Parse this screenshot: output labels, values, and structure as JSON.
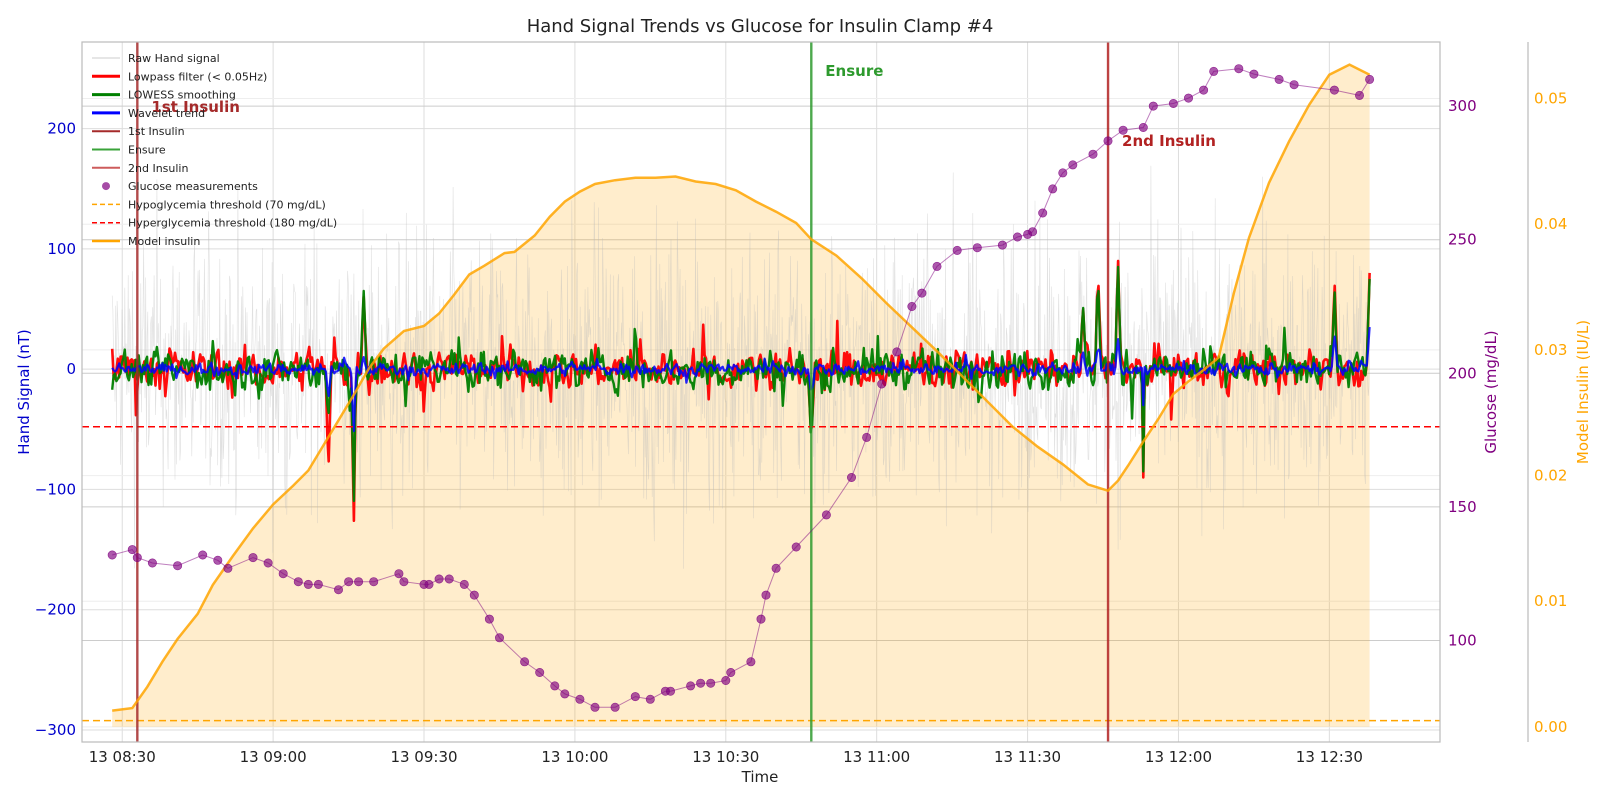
{
  "chart_data": {
    "type": "line",
    "title": "Hand Signal Trends vs Glucose for Insulin Clamp #4",
    "xlabel": "Time",
    "x_ticks": [
      "13 08:30",
      "13 09:00",
      "13 09:30",
      "13 10:00",
      "13 10:30",
      "13 11:00",
      "13 11:30",
      "13 12:00",
      "13 12:30"
    ],
    "x_range": [
      "13 08:22",
      "13 12:52"
    ],
    "grid": true,
    "legend_placement": "upper-left",
    "axes": {
      "left": {
        "label": "Hand Signal (nT)",
        "range": [
          -310,
          272
        ],
        "ticks": [
          -300,
          -200,
          -100,
          0,
          100,
          200
        ],
        "tick_labels": [
          "−300",
          "−200",
          "−100",
          "0",
          "100",
          "200"
        ],
        "color": "#0000cc"
      },
      "right_glucose": {
        "label": "Glucose (mg/dL)",
        "range": [
          62,
          324
        ],
        "ticks": [
          100,
          150,
          200,
          250,
          300
        ],
        "tick_labels": [
          "100",
          "150",
          "200",
          "250",
          "300"
        ],
        "color": "#800080"
      },
      "right_insulin": {
        "label": "Model Insulin (IU/L)",
        "range": [
          -0.0012,
          0.0545
        ],
        "ticks": [
          0,
          0.01,
          0.02,
          0.03,
          0.04,
          0.05
        ],
        "tick_labels": [
          "0.00",
          "0.01",
          "0.02",
          "0.03",
          "0.04",
          "0.05"
        ],
        "color": "#ffa500"
      }
    },
    "legend": [
      {
        "label": "Raw Hand signal",
        "kind": "line",
        "color": "#cccccc",
        "width": 1
      },
      {
        "label": "Lowpass filter (< 0.05Hz)",
        "kind": "line",
        "color": "#ff0000",
        "width": 3
      },
      {
        "label": "LOWESS smoothing",
        "kind": "line",
        "color": "#008000",
        "width": 3
      },
      {
        "label": "Wavelet trend",
        "kind": "line",
        "color": "#0000ff",
        "width": 3
      },
      {
        "label": "1st Insulin",
        "kind": "line",
        "color": "#a52a2a",
        "width": 2
      },
      {
        "label": "Ensure",
        "kind": "line",
        "color": "#3aa33a",
        "width": 2
      },
      {
        "label": "2nd Insulin",
        "kind": "line",
        "color": "#cd5c5c",
        "width": 2
      },
      {
        "label": "Glucose measurements",
        "kind": "dot",
        "color": "#800080"
      },
      {
        "label": "Hypoglycemia threshold (70 mg/dL)",
        "kind": "dash",
        "color": "#ffa500",
        "width": 1.5
      },
      {
        "label": "Hyperglycemia threshold (180 mg/dL)",
        "kind": "dash",
        "color": "#ff0000",
        "width": 1.5
      },
      {
        "label": "Model insulin",
        "kind": "line",
        "color": "#ffa500",
        "width": 2.5
      }
    ],
    "events": [
      {
        "label": "1st Insulin",
        "time": "13 08:33",
        "color": "#a52a2a"
      },
      {
        "label": "Ensure",
        "time": "13 10:47",
        "color": "#2e9a2e"
      },
      {
        "label": "2nd Insulin",
        "time": "13 11:46",
        "color": "#b22222"
      }
    ],
    "thresholds": [
      {
        "label": "Hypoglycemia threshold (70 mg/dL)",
        "glucose": 70,
        "color": "#ffa500"
      },
      {
        "label": "Hyperglycemia threshold (180 mg/dL)",
        "glucose": 180,
        "color": "#ff0000"
      }
    ],
    "glucose_series": {
      "name": "Glucose measurements",
      "times": [
        "13 08:28",
        "13 08:32",
        "13 08:33",
        "13 08:36",
        "13 08:41",
        "13 08:46",
        "13 08:49",
        "13 08:51",
        "13 08:56",
        "13 08:59",
        "13 09:02",
        "13 09:05",
        "13 09:07",
        "13 09:09",
        "13 09:13",
        "13 09:15",
        "13 09:17",
        "13 09:20",
        "13 09:25",
        "13 09:26",
        "13 09:30",
        "13 09:31",
        "13 09:33",
        "13 09:35",
        "13 09:38",
        "13 09:40",
        "13 09:43",
        "13 09:45",
        "13 09:50",
        "13 09:53",
        "13 09:56",
        "13 09:58",
        "13 10:01",
        "13 10:04",
        "13 10:08",
        "13 10:12",
        "13 10:15",
        "13 10:18",
        "13 10:19",
        "13 10:23",
        "13 10:25",
        "13 10:27",
        "13 10:30",
        "13 10:31",
        "13 10:35",
        "13 10:37",
        "13 10:38",
        "13 10:40",
        "13 10:44",
        "13 10:50",
        "13 10:55",
        "13 10:58",
        "13 11:01",
        "13 11:04",
        "13 11:07",
        "13 11:09",
        "13 11:12",
        "13 11:16",
        "13 11:20",
        "13 11:25",
        "13 11:28",
        "13 11:30",
        "13 11:31",
        "13 11:33",
        "13 11:35",
        "13 11:37",
        "13 11:39",
        "13 11:43",
        "13 11:46",
        "13 11:49",
        "13 11:53",
        "13 11:55",
        "13 11:59",
        "13 12:02",
        "13 12:05",
        "13 12:07",
        "13 12:12",
        "13 12:15",
        "13 12:20",
        "13 12:23",
        "13 12:31",
        "13 12:36",
        "13 12:38"
      ],
      "values": [
        132,
        134,
        131,
        129,
        128,
        132,
        130,
        127,
        131,
        129,
        125,
        122,
        121,
        121,
        119,
        122,
        122,
        122,
        125,
        122,
        121,
        121,
        123,
        123,
        121,
        117,
        108,
        101,
        92,
        88,
        83,
        80,
        78,
        75,
        75,
        79,
        78,
        81,
        81,
        83,
        84,
        84,
        85,
        88,
        92,
        108,
        117,
        127,
        135,
        147,
        161,
        176,
        196,
        208,
        225,
        230,
        240,
        246,
        247,
        248,
        251,
        252,
        253,
        260,
        269,
        275,
        278,
        282,
        287,
        291,
        292,
        300,
        301,
        303,
        306,
        313,
        314,
        312,
        310,
        308,
        306,
        304,
        310
      ]
    },
    "model_insulin_series": {
      "name": "Model insulin",
      "times": [
        "13 08:28",
        "13 08:32",
        "13 08:35",
        "13 08:38",
        "13 08:41",
        "13 08:45",
        "13 08:48",
        "13 08:52",
        "13 08:56",
        "13 09:00",
        "13 09:04",
        "13 09:07",
        "13 09:10",
        "13 09:13",
        "13 09:16",
        "13 09:19",
        "13 09:22",
        "13 09:26",
        "13 09:30",
        "13 09:33",
        "13 09:36",
        "13 09:39",
        "13 09:42",
        "13 09:46",
        "13 09:48",
        "13 09:52",
        "13 09:55",
        "13 09:58",
        "13 10:01",
        "13 10:04",
        "13 10:08",
        "13 10:12",
        "13 10:16",
        "13 10:20",
        "13 10:24",
        "13 10:28",
        "13 10:32",
        "13 10:36",
        "13 10:40",
        "13 10:44",
        "13 10:47",
        "13 10:52",
        "13 10:57",
        "13 11:02",
        "13 11:07",
        "13 11:12",
        "13 11:17",
        "13 11:22",
        "13 11:27",
        "13 11:32",
        "13 11:37",
        "13 11:42",
        "13 11:46",
        "13 11:48",
        "13 11:50",
        "13 11:53",
        "13 11:56",
        "13 11:59",
        "13 12:02",
        "13 12:05",
        "13 12:08",
        "13 12:11",
        "13 12:14",
        "13 12:18",
        "13 12:22",
        "13 12:26",
        "13 12:30",
        "13 12:34",
        "13 12:38"
      ],
      "values": [
        0.0013,
        0.0015,
        0.0032,
        0.0052,
        0.007,
        0.009,
        0.0113,
        0.0136,
        0.0158,
        0.0177,
        0.0192,
        0.0204,
        0.0224,
        0.0244,
        0.0264,
        0.0285,
        0.0301,
        0.0315,
        0.0319,
        0.0329,
        0.0344,
        0.036,
        0.0367,
        0.0377,
        0.0378,
        0.0391,
        0.0406,
        0.0418,
        0.0426,
        0.0432,
        0.0435,
        0.0437,
        0.0437,
        0.0438,
        0.0434,
        0.0432,
        0.0427,
        0.0418,
        0.041,
        0.0401,
        0.0388,
        0.0375,
        0.0357,
        0.0337,
        0.0318,
        0.0299,
        0.0279,
        0.0259,
        0.0239,
        0.0223,
        0.0209,
        0.0193,
        0.0188,
        0.0196,
        0.0208,
        0.0227,
        0.0245,
        0.0265,
        0.0275,
        0.0284,
        0.0294,
        0.0345,
        0.0389,
        0.0433,
        0.0466,
        0.0495,
        0.0519,
        0.0527,
        0.0519
      ]
    },
    "hand_signal_traces": {
      "time_range": [
        "13 08:28",
        "13 12:38"
      ],
      "raw_amplitude_nT": 200,
      "lowpass_amplitude_nT": 25,
      "lowess_amplitude_nT": 25,
      "wavelet_amplitude_nT": 8,
      "spikes": [
        {
          "time": "13 09:11",
          "lowpass": -85,
          "lowess": -40,
          "wavelet": -25
        },
        {
          "time": "13 09:16",
          "lowpass": 120,
          "lowess": 100,
          "wavelet": 35
        },
        {
          "time": "13 09:16",
          "lowpass": -150,
          "lowess": -130,
          "wavelet": -60
        },
        {
          "time": "13 09:18",
          "lowpass": 60,
          "lowess": 65,
          "wavelet": 10
        },
        {
          "time": "13 10:47",
          "lowpass": -60,
          "lowess": -65,
          "wavelet": -20
        },
        {
          "time": "13 11:41",
          "lowpass": 55,
          "lowess": 55,
          "wavelet": 15
        },
        {
          "time": "13 11:44",
          "lowpass": 80,
          "lowess": 80,
          "wavelet": 20
        },
        {
          "time": "13 11:48",
          "lowpass": 90,
          "lowess": 85,
          "wavelet": 25
        },
        {
          "time": "13 11:53",
          "lowpass": 150,
          "lowess": 140,
          "wavelet": 70
        },
        {
          "time": "13 11:53",
          "lowpass": -90,
          "lowess": -85,
          "wavelet": -30
        },
        {
          "time": "13 12:31",
          "lowpass": 78,
          "lowess": 70,
          "wavelet": 30
        },
        {
          "time": "13 12:38",
          "lowpass": 80,
          "lowess": 75,
          "wavelet": 35
        }
      ]
    }
  }
}
